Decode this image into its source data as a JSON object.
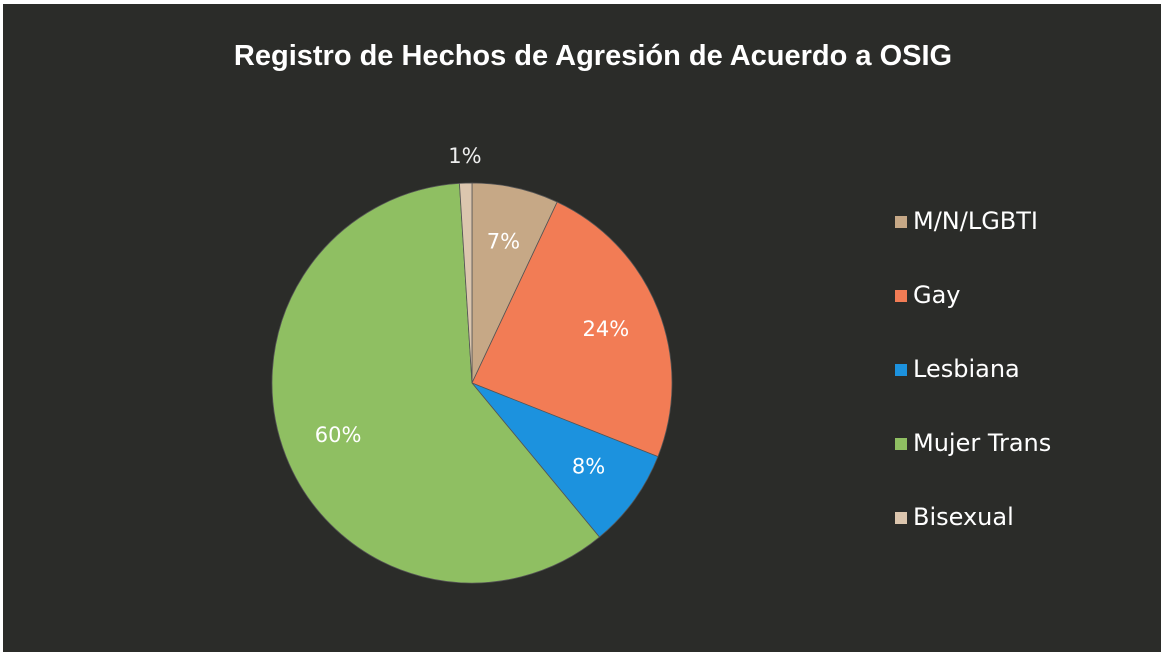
{
  "chart_data": {
    "type": "pie",
    "title": "Registro de Hechos de Agresión de  Acuerdo a OSIG",
    "categories": [
      "M/N/LGBTI",
      "Gay",
      "Lesbiana",
      "Mujer Trans",
      "Bisexual"
    ],
    "values": [
      7,
      24,
      8,
      60,
      1
    ],
    "value_labels": [
      "7%",
      "24%",
      "8%",
      "60%",
      "1%"
    ],
    "colors": [
      "#c6a886",
      "#f27c55",
      "#1c92de",
      "#8fbf62",
      "#dcc6ae"
    ],
    "legend": "right"
  }
}
